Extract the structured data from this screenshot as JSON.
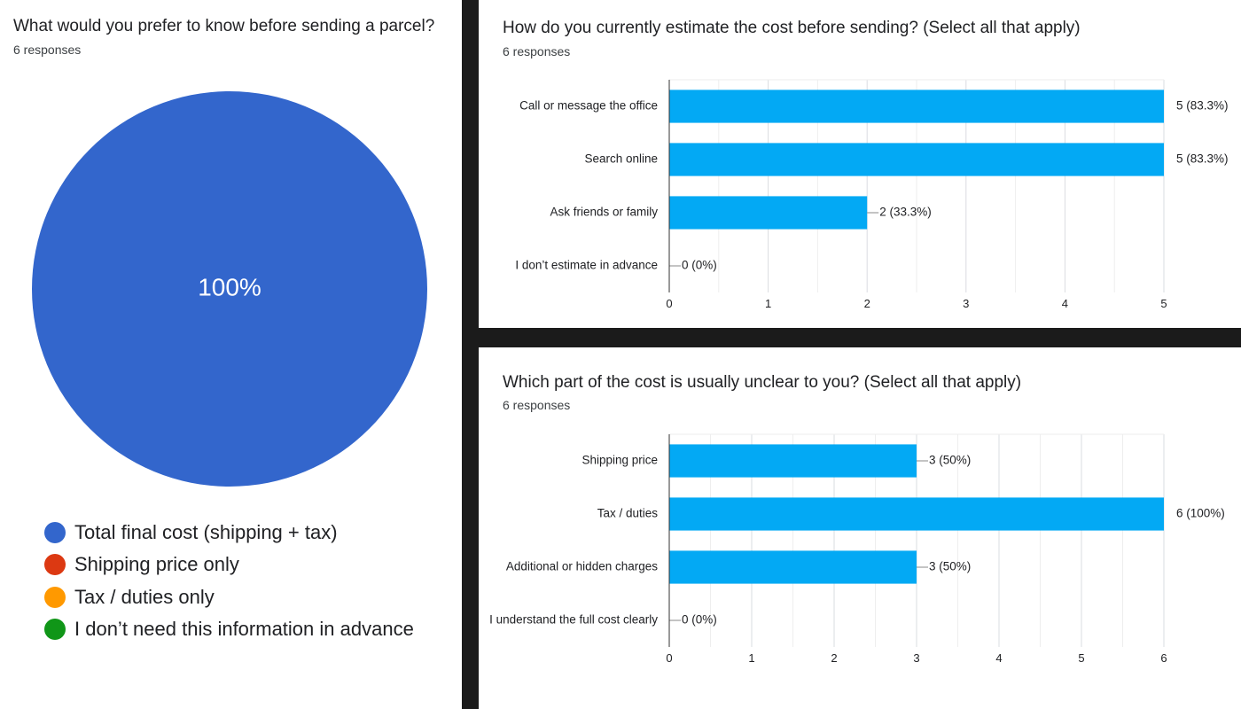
{
  "chart_data": [
    {
      "type": "pie",
      "title": "What would you prefer to know before sending a parcel?",
      "subtitle": "6 responses",
      "slices": [
        {
          "label": "Total final cost (shipping + tax)",
          "value": 6,
          "color": "#3366cc"
        },
        {
          "label": "Shipping price only",
          "value": 0,
          "color": "#dc3912"
        },
        {
          "label": "Tax / duties only",
          "value": 0,
          "color": "#ff9900"
        },
        {
          "label": "I don’t need this information in advance",
          "value": 0,
          "color": "#109618"
        }
      ],
      "center_label": "100%"
    },
    {
      "type": "bar",
      "orientation": "horizontal",
      "title": "How do you currently estimate the cost before sending? (Select all that apply)",
      "subtitle": "6 responses",
      "categories": [
        "Call or message the office",
        "Search online",
        "Ask friends or family",
        "I don’t estimate in advance"
      ],
      "values": [
        5,
        5,
        2,
        0
      ],
      "value_labels": [
        "5 (83.3%)",
        "5 (83.3%)",
        "2 (33.3%)",
        "0 (0%)"
      ],
      "xlim": [
        0,
        5
      ],
      "xticks": [
        "0",
        "1",
        "2",
        "3",
        "4",
        "5"
      ],
      "bar_color": "#03a9f4"
    },
    {
      "type": "bar",
      "orientation": "horizontal",
      "title": "Which part of the cost is usually unclear to you? (Select all that apply)",
      "subtitle": "6 responses",
      "categories": [
        "Shipping price",
        "Tax / duties",
        "Additional or hidden charges",
        "I understand the full cost clearly"
      ],
      "values": [
        3,
        6,
        3,
        0
      ],
      "value_labels": [
        "3 (50%)",
        "6 (100%)",
        "3 (50%)",
        "0 (0%)"
      ],
      "xlim": [
        0,
        6
      ],
      "xticks": [
        "0",
        "1",
        "2",
        "3",
        "4",
        "5",
        "6"
      ],
      "bar_color": "#03a9f4"
    }
  ]
}
